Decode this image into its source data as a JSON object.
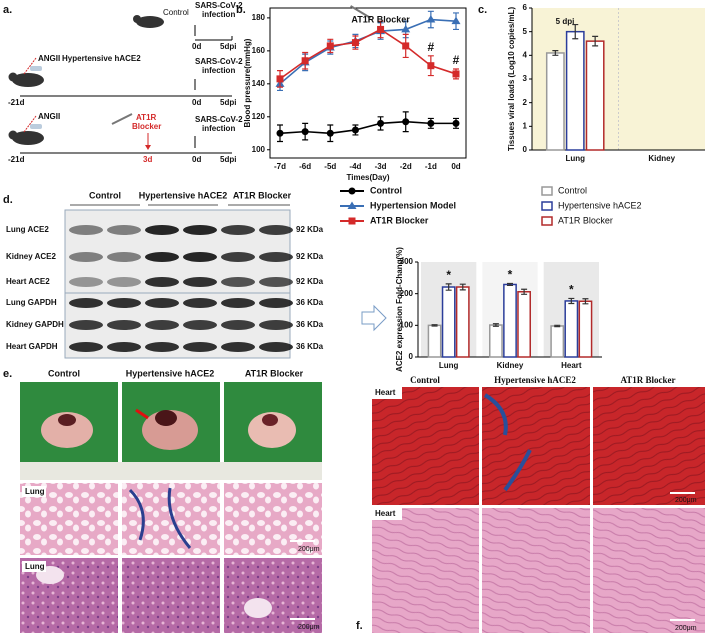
{
  "figure": {
    "a": {
      "label": "a.",
      "control": "Control",
      "infection_1": [
        "SARS-CoV-2",
        "infection"
      ],
      "day0_1": "0d",
      "dpi_1": "5dpi",
      "angii_2": "ANGII",
      "group_2": "Hypertensive hACE2",
      "infection_2": [
        "SARS-CoV-2",
        "infection"
      ],
      "start_2": "-21d",
      "day0_2": "0d",
      "dpi_2": "5dpi",
      "angii_3": "ANGII",
      "blocker_3": [
        "AT1R",
        "Blocker"
      ],
      "infection_3": [
        "SARS-CoV-2",
        "infection"
      ],
      "start_3": "-21d",
      "day3_3": "3d",
      "day0_3": "0d",
      "dpi_3": "5dpi"
    },
    "b": {
      "label": "b."
    },
    "c": {
      "label": "c."
    },
    "d": {
      "label": "d.",
      "groups": [
        "Control",
        "Hypertensive hACE2",
        "AT1R Blocker"
      ],
      "rows": [
        "Lung  ACE2",
        "Kidney ACE2",
        "Heart  ACE2",
        "Lung GAPDH",
        "Kidney GAPDH",
        "Heart GAPDH"
      ],
      "sizes": [
        "92 KDa",
        "92 KDa",
        "92 KDa",
        "36 KDa",
        "36 KDa",
        "36 KDa"
      ]
    },
    "e": {
      "label": "e.",
      "groups": [
        "Control",
        "Hypertensive hACE2",
        "AT1R Blocker"
      ],
      "row_labels": [
        "Lung",
        "Lung"
      ],
      "scale_bars": [
        "200μm",
        "200μm"
      ]
    },
    "f": {
      "label": "f.",
      "groups": [
        "Control",
        "Hypertensive hACE2",
        "AT1R  Blocker"
      ],
      "row_labels": [
        "Heart",
        "Heart"
      ],
      "scale_bars": [
        "200μm",
        "200μm"
      ]
    }
  },
  "chart_data": [
    {
      "type": "line",
      "x_label": "Times(Day)",
      "y_label": "Blood pressure(mmHg)",
      "categories": [
        "-7d",
        "-6d",
        "-5d",
        "-4d",
        "-3d",
        "-2d",
        "-1d",
        "0d"
      ],
      "ylim": [
        95,
        186
      ],
      "yticks": [
        100,
        120,
        140,
        160,
        180
      ],
      "series": [
        {
          "name": "Control",
          "color": "#000000",
          "marker": "circle",
          "values": [
            110,
            111,
            110,
            112,
            116,
            117,
            116,
            116
          ],
          "errors": [
            5,
            5,
            5,
            3,
            4,
            6,
            3,
            3
          ]
        },
        {
          "name": "Hypertension Model",
          "color": "#3a6fb5",
          "marker": "triangle",
          "values": [
            140,
            153,
            162,
            166,
            172,
            173,
            179,
            178
          ],
          "errors": [
            4,
            5,
            4,
            4,
            5,
            5,
            5,
            5
          ]
        },
        {
          "name": "AT1R Blocker",
          "color": "#d42a2a",
          "marker": "square",
          "values": [
            143,
            154,
            163,
            165,
            173,
            163,
            151,
            146
          ],
          "errors": [
            5,
            5,
            4,
            4,
            5,
            7,
            6,
            3
          ]
        }
      ],
      "annotations": [
        {
          "text": "AT1R Blocker",
          "category": 4,
          "color": "#d42a2a"
        },
        {
          "text": "#",
          "category": 6,
          "series": 2
        },
        {
          "text": "#",
          "category": 7,
          "series": 2
        }
      ]
    },
    {
      "type": "bar",
      "title": "5 dpi",
      "y_label": "Tissues viral loads (Log10 copies/mL)",
      "categories": [
        "Lung",
        "Kidney"
      ],
      "ylim": [
        0,
        6
      ],
      "yticks": [
        0,
        1,
        2,
        3,
        4,
        5,
        6
      ],
      "plot_background": "#f8f3d6",
      "series": [
        {
          "name": "Control",
          "color": "#999999",
          "values": [
            4.1,
            0
          ],
          "errors": [
            0.1,
            0
          ]
        },
        {
          "name": "Hypertensive hACE2",
          "color": "#2b3d9a",
          "values": [
            5.0,
            0
          ],
          "errors": [
            0.3,
            0
          ]
        },
        {
          "name": "AT1R Blocker",
          "color": "#b22a2a",
          "values": [
            4.6,
            0
          ],
          "errors": [
            0.2,
            0
          ]
        }
      ]
    },
    {
      "type": "bar",
      "y_label": "ACE2 expression Fold-Chang(%)",
      "categories": [
        "Lung",
        "Kidney",
        "Heart"
      ],
      "ylim": [
        0,
        300
      ],
      "yticks": [
        0,
        100,
        200,
        300
      ],
      "series": [
        {
          "name": "Control",
          "color": "#999999",
          "values": [
            100,
            101,
            98
          ],
          "errors": [
            2,
            4,
            2
          ]
        },
        {
          "name": "Hypertensive hACE2",
          "color": "#2b3d9a",
          "values": [
            221,
            229,
            177
          ],
          "errors": [
            10,
            3,
            8
          ]
        },
        {
          "name": "AT1R Blocker",
          "color": "#b22a2a",
          "values": [
            221,
            206,
            176
          ],
          "errors": [
            9,
            8,
            8
          ]
        }
      ],
      "annotations": [
        {
          "text": "*",
          "category": 0,
          "series": 1
        },
        {
          "text": "*",
          "category": 1,
          "series": 1
        },
        {
          "text": "*",
          "category": 2,
          "series": 1
        }
      ]
    }
  ]
}
